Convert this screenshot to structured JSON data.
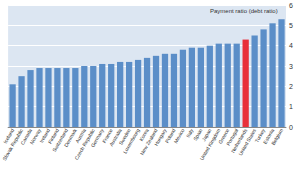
{
  "chart_data": {
    "type": "bar",
    "title": "Payment ratio (debt ratio)",
    "categories": [
      "Iceland",
      "Slovak Republic",
      "Canada",
      "Norway",
      "Ireland",
      "Finland",
      "Switzerland",
      "Denmark",
      "Austria",
      "Czech Republic",
      "Germany",
      "France",
      "Australia",
      "Sweden",
      "Luxembourg",
      "Korea",
      "New Zealand",
      "Hungary",
      "Poland",
      "Mexico",
      "Italy",
      "Spain",
      "Japan",
      "United Kingdom",
      "Greece",
      "Portugal",
      "Netherlands",
      "United States",
      "Turkey",
      "Estonia",
      "Belgium"
    ],
    "values": [
      2.1,
      2.5,
      2.8,
      2.9,
      2.9,
      2.9,
      2.9,
      2.9,
      3.0,
      3.0,
      3.1,
      3.1,
      3.2,
      3.2,
      3.3,
      3.4,
      3.5,
      3.6,
      3.6,
      3.8,
      3.9,
      3.9,
      4.0,
      4.1,
      4.1,
      4.1,
      4.3,
      4.5,
      4.8,
      5.1,
      5.3
    ],
    "colors": [
      "#5b8ec8",
      "#5b8ec8",
      "#5b8ec8",
      "#5b8ec8",
      "#5b8ec8",
      "#5b8ec8",
      "#5b8ec8",
      "#5b8ec8",
      "#5b8ec8",
      "#5b8ec8",
      "#5b8ec8",
      "#5b8ec8",
      "#5b8ec8",
      "#5b8ec8",
      "#5b8ec8",
      "#5b8ec8",
      "#5b8ec8",
      "#5b8ec8",
      "#5b8ec8",
      "#5b8ec8",
      "#5b8ec8",
      "#5b8ec8",
      "#5b8ec8",
      "#5b8ec8",
      "#5b8ec8",
      "#5b8ec8",
      "#e8303a",
      "#5b8ec8",
      "#5b8ec8",
      "#5b8ec8",
      "#5b8ec8"
    ],
    "ylim": [
      0,
      6
    ],
    "yticks": [
      0,
      1,
      2,
      3,
      4,
      5,
      6
    ],
    "grid": true
  }
}
